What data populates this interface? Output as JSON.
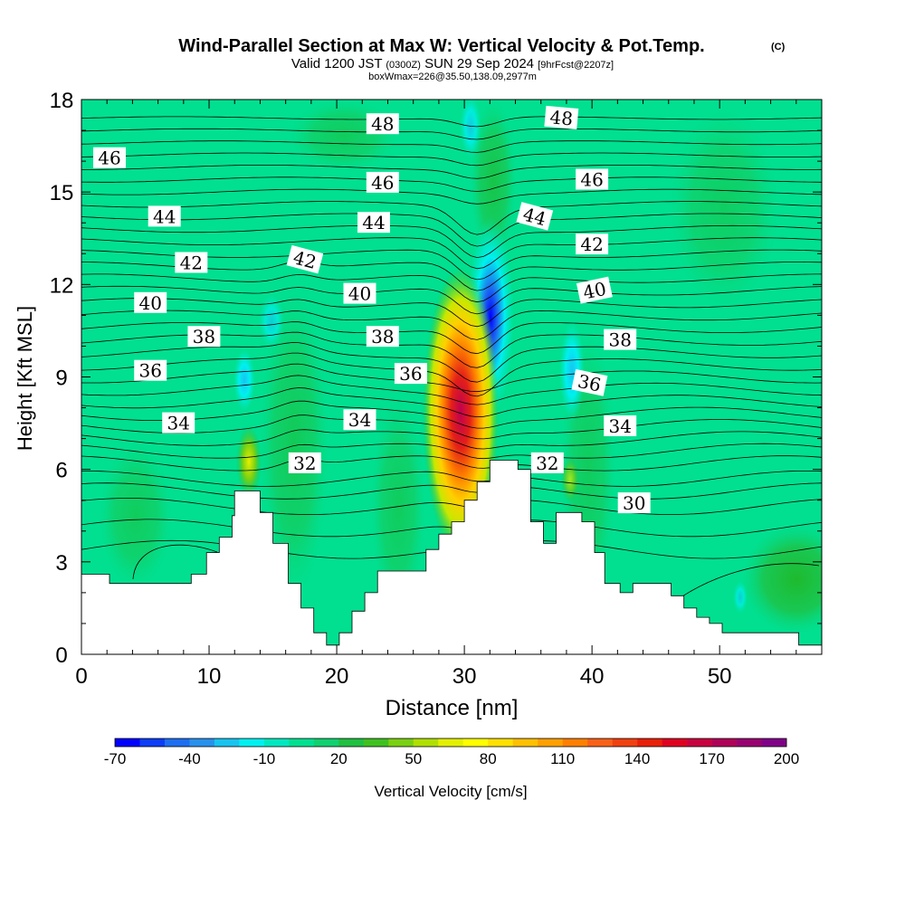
{
  "chart_data": {
    "type": "heatmap",
    "title": "Wind-Parallel Section at Max W: Vertical Velocity & Pot.Temp.",
    "title_mark": "(C)",
    "subtitle": {
      "valid_prefix": "Valid 1200 JST",
      "zulu": "(0300Z)",
      "date": "SUN 29 Sep 2024",
      "forecast": "[9hrFcst@2207z]"
    },
    "box_info": "boxWmax=226@35.50,138.09,2977m",
    "xlabel": "Distance [nm]",
    "ylabel": "Height [Kft MSL]",
    "xlim": [
      0,
      58
    ],
    "ylim": [
      0,
      18
    ],
    "xticks": [
      0,
      10,
      20,
      30,
      40,
      50
    ],
    "yticks": [
      0,
      3,
      6,
      9,
      12,
      15,
      18
    ],
    "colorbar": {
      "label": "Vertical Velocity [cm/s]",
      "tick_labels": [
        -70,
        -40,
        -10,
        20,
        50,
        80,
        110,
        140,
        170,
        200
      ],
      "levels": [
        -70,
        -60,
        -50,
        -40,
        -30,
        -20,
        -10,
        0,
        10,
        20,
        30,
        40,
        50,
        60,
        70,
        80,
        90,
        100,
        110,
        120,
        130,
        140,
        150,
        160,
        170,
        180,
        190,
        200
      ],
      "colors": [
        "#0000ff",
        "#0d3df5",
        "#1e6ef0",
        "#2891ec",
        "#18c3f0",
        "#00f0f0",
        "#00e8c0",
        "#00e090",
        "#10d070",
        "#20c040",
        "#40c020",
        "#7ad012",
        "#b0e000",
        "#e4f000",
        "#ffff00",
        "#ffe000",
        "#ffc000",
        "#ffa000",
        "#ff8000",
        "#f86018",
        "#f04010",
        "#e82008",
        "#e00020",
        "#c80040",
        "#b00058",
        "#980070",
        "#800088"
      ]
    },
    "terrain": [
      [
        0,
        2.6
      ],
      [
        2.2,
        2.6
      ],
      [
        2.2,
        2.3
      ],
      [
        8.6,
        2.3
      ],
      [
        8.6,
        2.6
      ],
      [
        9.8,
        2.6
      ],
      [
        9.8,
        3.3
      ],
      [
        10.8,
        3.3
      ],
      [
        10.8,
        3.8
      ],
      [
        11.8,
        3.8
      ],
      [
        11.8,
        4.5
      ],
      [
        12,
        4.5
      ],
      [
        12,
        5.3
      ],
      [
        14,
        5.3
      ],
      [
        14,
        4.6
      ],
      [
        15,
        4.6
      ],
      [
        15,
        3.6
      ],
      [
        16.2,
        3.6
      ],
      [
        16.2,
        2.3
      ],
      [
        17.2,
        2.3
      ],
      [
        17.2,
        1.5
      ],
      [
        18.2,
        1.5
      ],
      [
        18.2,
        0.7
      ],
      [
        19.2,
        0.7
      ],
      [
        19.2,
        0.3
      ],
      [
        20.2,
        0.3
      ],
      [
        20.2,
        0.7
      ],
      [
        21.2,
        0.7
      ],
      [
        21.2,
        1.4
      ],
      [
        22.2,
        1.4
      ],
      [
        22.2,
        2.0
      ],
      [
        23.2,
        2.0
      ],
      [
        23.2,
        2.7
      ],
      [
        24.2,
        2.7
      ],
      [
        24.2,
        2.7
      ],
      [
        27,
        2.7
      ],
      [
        27,
        3.4
      ],
      [
        28,
        3.4
      ],
      [
        28,
        3.9
      ],
      [
        29,
        3.9
      ],
      [
        29,
        4.3
      ],
      [
        30,
        4.3
      ],
      [
        30,
        5.0
      ],
      [
        31,
        5.0
      ],
      [
        31,
        5.6
      ],
      [
        32,
        5.6
      ],
      [
        32,
        6.3
      ],
      [
        34.2,
        6.3
      ],
      [
        34.2,
        6.0
      ],
      [
        35.2,
        6.0
      ],
      [
        35.2,
        4.3
      ],
      [
        36.2,
        4.3
      ],
      [
        36.2,
        3.6
      ],
      [
        37.2,
        3.6
      ],
      [
        37.2,
        4.6
      ],
      [
        39.2,
        4.6
      ],
      [
        39.2,
        4.3
      ],
      [
        40.2,
        4.3
      ],
      [
        40.2,
        3.3
      ],
      [
        41,
        3.3
      ],
      [
        41,
        2.3
      ],
      [
        42.2,
        2.3
      ],
      [
        42.2,
        2.0
      ],
      [
        43.2,
        2.0
      ],
      [
        43.2,
        2.3
      ],
      [
        46.2,
        2.3
      ],
      [
        46.2,
        1.9
      ],
      [
        47.2,
        1.9
      ],
      [
        47.2,
        1.5
      ],
      [
        48.2,
        1.5
      ],
      [
        48.2,
        1.2
      ],
      [
        49.2,
        1.2
      ],
      [
        49.2,
        1.0
      ],
      [
        50.2,
        1.0
      ],
      [
        50.2,
        0.7
      ],
      [
        56.2,
        0.7
      ],
      [
        56.2,
        0.3
      ],
      [
        58,
        0.3
      ]
    ],
    "contour_labels": [
      {
        "text": "48",
        "x": 23.6,
        "y": 17.2,
        "angle": 0
      },
      {
        "text": "48",
        "x": 37.6,
        "y": 17.4,
        "angle": 5
      },
      {
        "text": "46",
        "x": 2.2,
        "y": 16.1,
        "angle": 0
      },
      {
        "text": "46",
        "x": 23.6,
        "y": 15.3,
        "angle": 0
      },
      {
        "text": "46",
        "x": 40.0,
        "y": 15.4,
        "angle": 0
      },
      {
        "text": "44",
        "x": 6.5,
        "y": 14.2,
        "angle": 0
      },
      {
        "text": "44",
        "x": 22.9,
        "y": 14.0,
        "angle": 0
      },
      {
        "text": "44",
        "x": 35.5,
        "y": 14.2,
        "angle": 15
      },
      {
        "text": "42",
        "x": 8.6,
        "y": 12.7,
        "angle": 0
      },
      {
        "text": "42",
        "x": 17.5,
        "y": 12.8,
        "angle": 15
      },
      {
        "text": "42",
        "x": 40.0,
        "y": 13.3,
        "angle": 0
      },
      {
        "text": "40",
        "x": 5.4,
        "y": 11.4,
        "angle": 0
      },
      {
        "text": "40",
        "x": 21.8,
        "y": 11.7,
        "angle": 0
      },
      {
        "text": "40",
        "x": 40.2,
        "y": 11.8,
        "angle": -12
      },
      {
        "text": "38",
        "x": 9.6,
        "y": 10.3,
        "angle": 0
      },
      {
        "text": "38",
        "x": 23.6,
        "y": 10.3,
        "angle": 0
      },
      {
        "text": "38",
        "x": 42.2,
        "y": 10.2,
        "angle": 0
      },
      {
        "text": "36",
        "x": 5.4,
        "y": 9.2,
        "angle": 0
      },
      {
        "text": "36",
        "x": 25.8,
        "y": 9.1,
        "angle": 0
      },
      {
        "text": "36",
        "x": 39.8,
        "y": 8.8,
        "angle": 12
      },
      {
        "text": "34",
        "x": 7.6,
        "y": 7.5,
        "angle": 0
      },
      {
        "text": "34",
        "x": 21.8,
        "y": 7.6,
        "angle": 0
      },
      {
        "text": "34",
        "x": 42.2,
        "y": 7.4,
        "angle": 0
      },
      {
        "text": "32",
        "x": 17.5,
        "y": 6.2,
        "angle": 0
      },
      {
        "text": "32",
        "x": 36.5,
        "y": 6.2,
        "angle": 0
      },
      {
        "text": "30",
        "x": 43.3,
        "y": 4.9,
        "angle": 0
      }
    ]
  }
}
